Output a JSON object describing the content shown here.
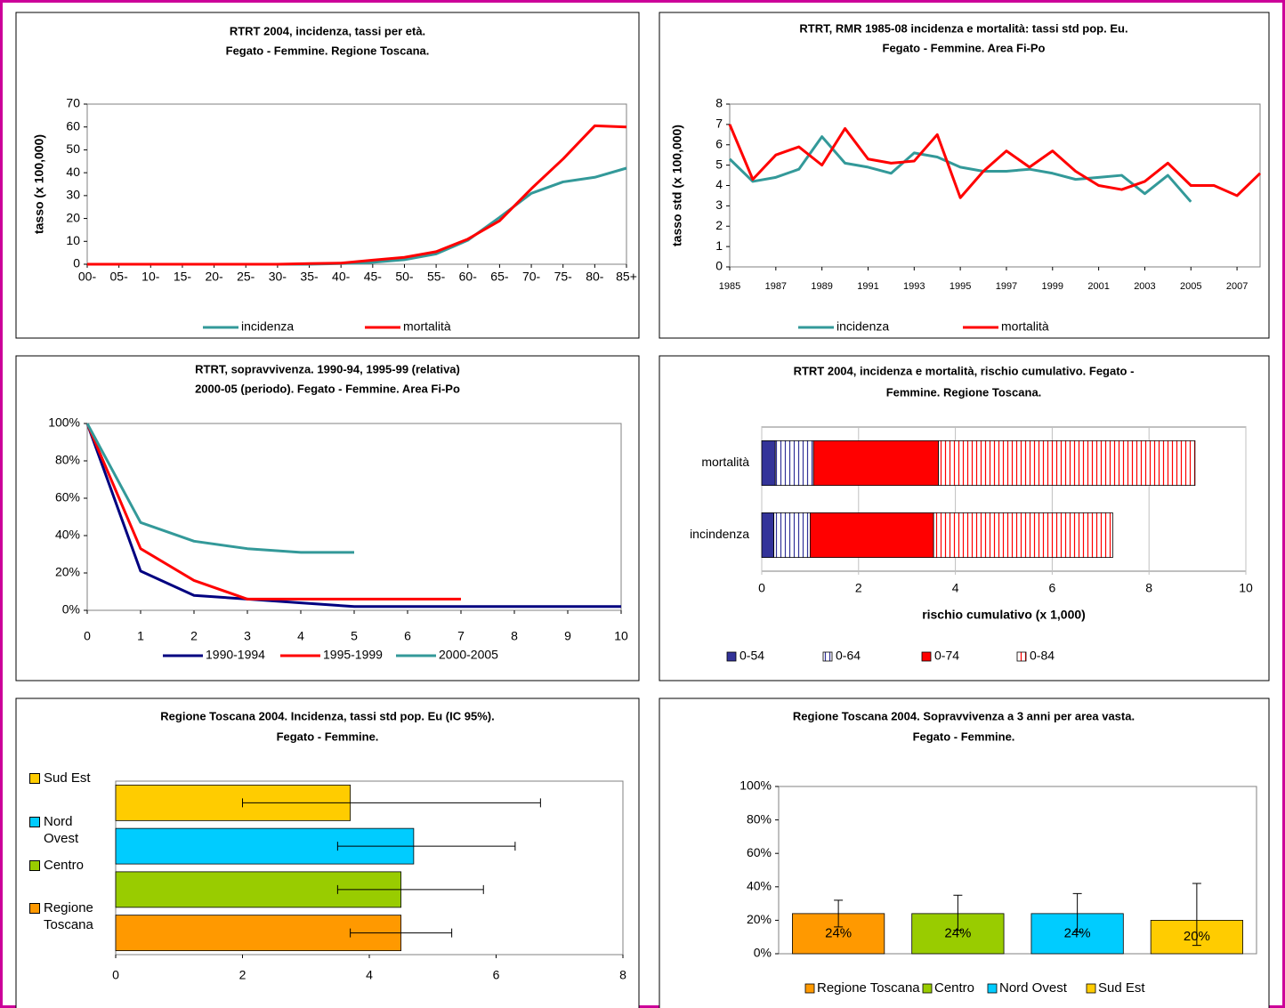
{
  "chart_data": [
    {
      "type": "line",
      "title": [
        "RTRT 2004, incidenza, tassi per età.",
        "Fegato - Femmine. Regione Toscana."
      ],
      "y_label": "tasso (x 100,000)",
      "categories": [
        "00-",
        "05-",
        "10-",
        "15-",
        "20-",
        "25-",
        "30-",
        "35-",
        "40-",
        "45-",
        "50-",
        "55-",
        "60-",
        "65-",
        "70-",
        "75-",
        "80-",
        "85+"
      ],
      "series": [
        {
          "name": "incidenza",
          "color": "#339999",
          "values": [
            0,
            0,
            0,
            0,
            0,
            0,
            0,
            0,
            0.3,
            0.8,
            2,
            4.5,
            10.5,
            20.5,
            31,
            36,
            38,
            42
          ]
        },
        {
          "name": "mortalità",
          "color": "#FF0000",
          "values": [
            0,
            0,
            0,
            0,
            0,
            0,
            0,
            0.3,
            0.5,
            1.8,
            3,
            5.5,
            11,
            19,
            33,
            46,
            60.5,
            60
          ]
        }
      ],
      "ylim": [
        0,
        70
      ],
      "yticks": [
        0,
        10,
        20,
        30,
        40,
        50,
        60,
        70
      ],
      "grid": false,
      "legend": "bottom"
    },
    {
      "type": "line",
      "title": [
        "RTRT, RMR 1985-08 incidenza e mortalità: tassi std pop. Eu.",
        "Fegato - Femmine. Area Fi-Po"
      ],
      "y_label": "tasso std (x 100,000)",
      "x": [
        1985,
        1986,
        1987,
        1988,
        1989,
        1990,
        1991,
        1992,
        1993,
        1994,
        1995,
        1996,
        1997,
        1998,
        1999,
        2000,
        2001,
        2002,
        2003,
        2004,
        2005,
        2006,
        2007,
        2008
      ],
      "series": [
        {
          "name": "incidenza",
          "color": "#339999",
          "values": [
            5.3,
            4.2,
            4.4,
            4.8,
            6.4,
            5.1,
            4.9,
            4.6,
            5.6,
            5.4,
            4.9,
            4.7,
            4.7,
            4.8,
            4.6,
            4.3,
            4.4,
            4.5,
            3.6,
            4.5,
            3.2,
            null,
            null,
            null
          ]
        },
        {
          "name": "mortalità",
          "color": "#FF0000",
          "values": [
            7.0,
            4.3,
            5.5,
            5.9,
            5.0,
            6.8,
            5.3,
            5.1,
            5.2,
            6.5,
            3.4,
            4.7,
            5.7,
            4.9,
            5.7,
            4.7,
            4.0,
            3.8,
            4.2,
            5.1,
            4.0,
            4.0,
            3.5,
            4.6
          ]
        }
      ],
      "xlim": [
        1985,
        2008
      ],
      "xticks": [
        1985,
        1987,
        1989,
        1991,
        1993,
        1995,
        1997,
        1999,
        2001,
        2003,
        2005,
        2007
      ],
      "ylim": [
        0,
        8
      ],
      "yticks": [
        0,
        1,
        2,
        3,
        4,
        5,
        6,
        7,
        8
      ],
      "grid": false,
      "legend": "bottom"
    },
    {
      "type": "line",
      "title": [
        "RTRT, sopravvivenza. 1990-94, 1995-99 (relativa)",
        "2000-05 (periodo). Fegato - Femmine. Area Fi-Po"
      ],
      "x": [
        0,
        1,
        2,
        3,
        4,
        5,
        6,
        7,
        8,
        9,
        10
      ],
      "series": [
        {
          "name": "1990-1994",
          "color": "#000080",
          "values": [
            100,
            21,
            8,
            6,
            4,
            2,
            2,
            2,
            2,
            2,
            2
          ]
        },
        {
          "name": "1995-1999",
          "color": "#FF0000",
          "values": [
            100,
            33,
            16,
            6,
            6,
            6,
            6,
            6,
            null,
            null,
            null
          ]
        },
        {
          "name": "2000-2005",
          "color": "#339999",
          "values": [
            100,
            47,
            37,
            33,
            31,
            31,
            null,
            null,
            null,
            null,
            null
          ]
        }
      ],
      "xlim": [
        0,
        10
      ],
      "xticks": [
        0,
        1,
        2,
        3,
        4,
        5,
        6,
        7,
        8,
        9,
        10
      ],
      "ylim": [
        0,
        100
      ],
      "yticks": [
        {
          "value": 0,
          "label": "0%"
        },
        {
          "value": 20,
          "label": "20%"
        },
        {
          "value": 40,
          "label": "40%"
        },
        {
          "value": 60,
          "label": "60%"
        },
        {
          "value": 80,
          "label": "80%"
        },
        {
          "value": 100,
          "label": "100%"
        }
      ],
      "grid": false,
      "legend": "bottom"
    },
    {
      "type": "bar",
      "orientation": "horizontal",
      "stacked": true,
      "title": [
        "RTRT 2004, incidenza e mortalità, rischio cumulativo.  Fegato -",
        "Femmine. Regione Toscana."
      ],
      "x_label": "rischio cumulativo (x 1,000)",
      "categories": [
        "incindenza",
        "mortalità"
      ],
      "series": [
        {
          "name": "0-54",
          "color": "#333399",
          "pattern": "solid",
          "values": [
            0.25,
            0.28
          ]
        },
        {
          "name": "0-64",
          "color": "#333399",
          "pattern": "stripes",
          "values": [
            0.75,
            0.79
          ]
        },
        {
          "name": "0-74",
          "color": "#FF0000",
          "pattern": "solid",
          "values": [
            2.55,
            2.58
          ]
        },
        {
          "name": "0-84",
          "color": "#FF0000",
          "pattern": "stripes",
          "values": [
            3.7,
            5.3
          ]
        }
      ],
      "xlim": [
        0,
        10
      ],
      "xticks": [
        0,
        2,
        4,
        6,
        8,
        10
      ],
      "grid": true,
      "legend": "bottom"
    },
    {
      "type": "bar",
      "orientation": "horizontal",
      "stacked": false,
      "title": [
        "Regione Toscana 2004. Incidenza, tassi std pop. Eu (IC 95%).",
        "Fegato - Femmine."
      ],
      "categories": [
        "Regione Toscana",
        "Centro",
        "Nord Ovest",
        "Sud Est"
      ],
      "values": [
        4.5,
        4.5,
        4.7,
        3.7
      ],
      "error_low": [
        3.7,
        3.5,
        3.5,
        2.0
      ],
      "error_high": [
        5.3,
        5.8,
        6.3,
        6.7
      ],
      "colors": [
        "#FF9900",
        "#99CC00",
        "#00CCFF",
        "#FFCC00"
      ],
      "xlim": [
        0,
        8
      ],
      "xticks": [
        0,
        2,
        4,
        6,
        8
      ],
      "grid": false,
      "legend": "left"
    },
    {
      "type": "bar",
      "orientation": "vertical",
      "stacked": false,
      "title": [
        "Regione Toscana 2004. Sopravvivenza a 3 anni per area vasta.",
        "Fegato - Femmine."
      ],
      "categories": [
        "Regione Toscana",
        "Centro",
        "Nord Ovest",
        "Sud Est"
      ],
      "values": [
        24,
        24,
        24,
        20
      ],
      "value_labels": [
        "24%",
        "24%",
        "24%",
        "20%"
      ],
      "error_low": [
        16,
        14,
        13,
        5
      ],
      "error_high": [
        32,
        35,
        36,
        42
      ],
      "colors": [
        "#FF9900",
        "#99CC00",
        "#00CCFF",
        "#FFCC00"
      ],
      "ylim": [
        0,
        100
      ],
      "yticks": [
        {
          "value": 0,
          "label": "0%"
        },
        {
          "value": 20,
          "label": "20%"
        },
        {
          "value": 40,
          "label": "40%"
        },
        {
          "value": 60,
          "label": "60%"
        },
        {
          "value": 80,
          "label": "80%"
        },
        {
          "value": 100,
          "label": "100%"
        }
      ],
      "grid": false,
      "legend": "bottom"
    }
  ]
}
